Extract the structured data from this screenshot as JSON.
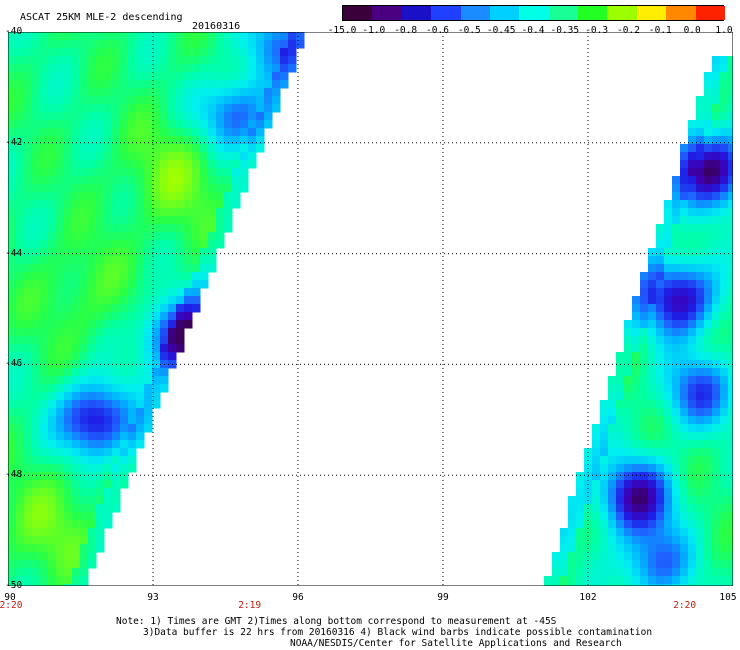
{
  "header": {
    "title": "ASCAT 25KM MLE-2 descending",
    "date": "20160316"
  },
  "colorbar": {
    "labels": [
      "-15.0",
      "-1.0",
      "-0.8",
      "-0.6",
      "-0.5",
      "-0.45",
      "-0.4",
      "-0.35",
      "-0.3",
      "-0.2",
      "-0.1",
      "0.0",
      "1.0"
    ],
    "colors": [
      "#3a003a",
      "#4b0082",
      "#1a10c8",
      "#2040ff",
      "#1a8cff",
      "#00d0ff",
      "#00ffe6",
      "#19ff96",
      "#22ff22",
      "#9cff00",
      "#ffee00",
      "#ff8800",
      "#ff2200"
    ]
  },
  "axes": {
    "y_labels": [
      "-40",
      "-42",
      "-44",
      "-46",
      "-48",
      "-50"
    ],
    "x_labels": [
      "90",
      "93",
      "96",
      "99",
      "102",
      "105"
    ],
    "times": [
      {
        "label": "2:20",
        "lon": 90
      },
      {
        "label": "2:19",
        "lon": 95
      },
      {
        "label": "2:20",
        "lon": 104
      }
    ]
  },
  "map_data": {
    "lon_range": [
      90,
      105
    ],
    "lat_range": [
      -50,
      -40
    ],
    "grid_lons": [
      93,
      96,
      99,
      102
    ],
    "grid_lats": [
      -42,
      -44,
      -46,
      -48
    ],
    "swaths": [
      {
        "name": "west",
        "edge_lat_top": -40,
        "edge_lon_top": 96.2,
        "edge_lat_bottom": -50,
        "edge_lon_bottom": 91.6
      },
      {
        "name": "east",
        "edge_lat_top": -40.4,
        "edge_lon_top": 104.6,
        "edge_lat_bottom": -50,
        "edge_lon_bottom": 101.1
      }
    ],
    "blue_patches": [
      {
        "lon": 93.6,
        "lat": -45.5,
        "strength": 0.9
      },
      {
        "lon": 91.8,
        "lat": -47.0,
        "strength": 0.85
      },
      {
        "lon": 94.7,
        "lat": -41.5,
        "strength": 0.6
      },
      {
        "lon": 95.7,
        "lat": -40.2,
        "strength": 0.5
      },
      {
        "lon": 104.6,
        "lat": -42.5,
        "strength": 1.0
      },
      {
        "lon": 103.9,
        "lat": -44.8,
        "strength": 0.9
      },
      {
        "lon": 103.0,
        "lat": -48.4,
        "strength": 0.9
      },
      {
        "lon": 104.3,
        "lat": -46.5,
        "strength": 0.6
      },
      {
        "lon": 103.4,
        "lat": -49.6,
        "strength": 0.55
      }
    ],
    "green_patches": [
      {
        "lon": 93.5,
        "lat": -42.6,
        "strength": 0.8
      },
      {
        "lon": 90.9,
        "lat": -48.9,
        "strength": 0.7
      },
      {
        "lon": 91.5,
        "lat": -44.7,
        "strength": 0.5
      }
    ]
  },
  "footer": {
    "line1": "Note: 1) Times are GMT 2)Times along bottom correspond to measurement at -45S",
    "line2": "3)Data buffer is 22 hrs from 20160316 4) Black wind barbs indicate possible contamination",
    "line3": "NOAA/NESDIS/Center for Satellite Applications and Research"
  }
}
